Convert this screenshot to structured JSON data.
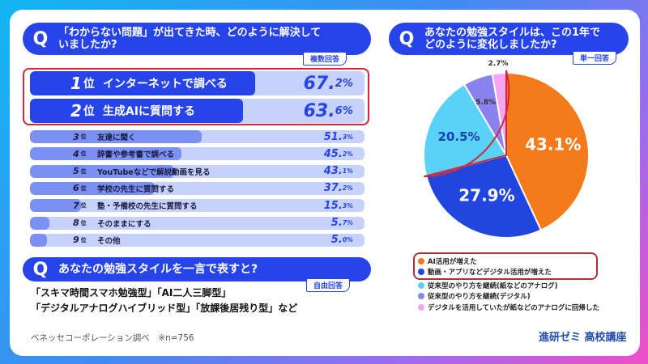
{
  "q1": {
    "q": "Q",
    "title_line1": "「わからない問題」が出てきた時、どのように解決して",
    "title_line2": "いましたか?",
    "tag": "複数回答",
    "items": [
      {
        "rank": "1",
        "suffix": "位",
        "label": "インターネットで調べる",
        "value": 67.2,
        "int": "67.",
        "dec": "2%"
      },
      {
        "rank": "2",
        "suffix": "位",
        "label": "生成AIに質問する",
        "value": 63.6,
        "int": "63.",
        "dec": "6%"
      },
      {
        "rank": "3",
        "suffix": "位",
        "label": "友達に聞く",
        "value": 51.3,
        "int": "51.",
        "dec": "3%"
      },
      {
        "rank": "4",
        "suffix": "位",
        "label": "辞書や参考書で調べる",
        "value": 45.2,
        "int": "45.",
        "dec": "2%"
      },
      {
        "rank": "5",
        "suffix": "位",
        "label": "YouTubeなどで解説動画を見る",
        "value": 43.1,
        "int": "43.",
        "dec": "1%"
      },
      {
        "rank": "6",
        "suffix": "位",
        "label": "学校の先生に質問する",
        "value": 37.2,
        "int": "37.",
        "dec": "2%"
      },
      {
        "rank": "7",
        "suffix": "位",
        "label": "塾・予備校の先生に質問する",
        "value": 15.3,
        "int": "15.",
        "dec": "3%"
      },
      {
        "rank": "8",
        "suffix": "位",
        "label": "そのままにする",
        "value": 5.7,
        "int": "5.",
        "dec": "7%"
      },
      {
        "rank": "9",
        "suffix": "位",
        "label": "その他",
        "value": 5.0,
        "int": "5.",
        "dec": "0%"
      }
    ]
  },
  "q2": {
    "q": "Q",
    "title": "あなたの勉強スタイルを一言で表すと?",
    "tag": "自由回答",
    "answer_line1": "「スキマ時間スマホ勉強型」「AI二人三脚型」",
    "answer_line2": "「デジタルアナログハイブリッド型」「放課後居残り型」など"
  },
  "q3": {
    "q": "Q",
    "title_line1": "あなたの勉強スタイルは、この1年で",
    "title_line2": "どのように変化しましたか?",
    "tag": "単一回答",
    "slices": [
      {
        "label": "AI活用が増えた",
        "value": 43.1,
        "text": "43.1%",
        "color": "#f47a1c"
      },
      {
        "label": "動画・アプリなどデジタル活用が増えた",
        "value": 27.9,
        "text": "27.9%",
        "color": "#2146e0"
      },
      {
        "label": "従来型のやり方を継続(紙などのアナログ)",
        "value": 20.5,
        "text": "20.5%",
        "color": "#5ad2f5"
      },
      {
        "label": "従来型のやり方を継続(デジタル)",
        "value": 5.8,
        "text": "5.8%",
        "color": "#8a82ee"
      },
      {
        "label": "デジタルを活用していたが紙などのアナログに回帰した",
        "value": 2.7,
        "text": "2.7%",
        "color": "#f6a6f0"
      }
    ]
  },
  "source": "ベネッセコーポレーション調べ　※n=756",
  "brand": "進研ゼミ 高校講座"
}
